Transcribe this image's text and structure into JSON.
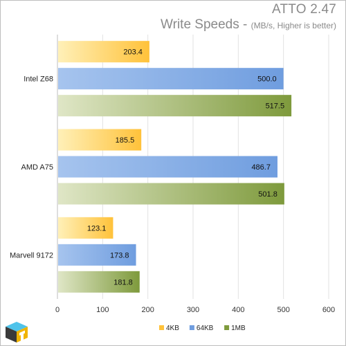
{
  "chart_data": {
    "type": "bar",
    "orientation": "horizontal",
    "title": "ATTO 2.47",
    "subtitle_main": "Write Speeds - ",
    "subtitle_note": "(MB/s, Higher is better)",
    "categories": [
      "Intel Z68",
      "AMD A75",
      "Marvell 9172"
    ],
    "series": [
      {
        "name": "4KB",
        "values": [
          203.4,
          185.5,
          123.1
        ],
        "color": "#ffc23a"
      },
      {
        "name": "64KB",
        "values": [
          500.0,
          486.7,
          173.8
        ],
        "color": "#6f9ddf"
      },
      {
        "name": "1MB",
        "values": [
          517.5,
          501.8,
          181.8
        ],
        "color": "#7e9a3c"
      }
    ],
    "xlim": [
      0,
      600
    ],
    "x_ticks": [
      "0",
      "100",
      "200",
      "300",
      "400",
      "500",
      "600"
    ],
    "gridlines": true,
    "legend_position": "bottom",
    "value_labels": true
  }
}
